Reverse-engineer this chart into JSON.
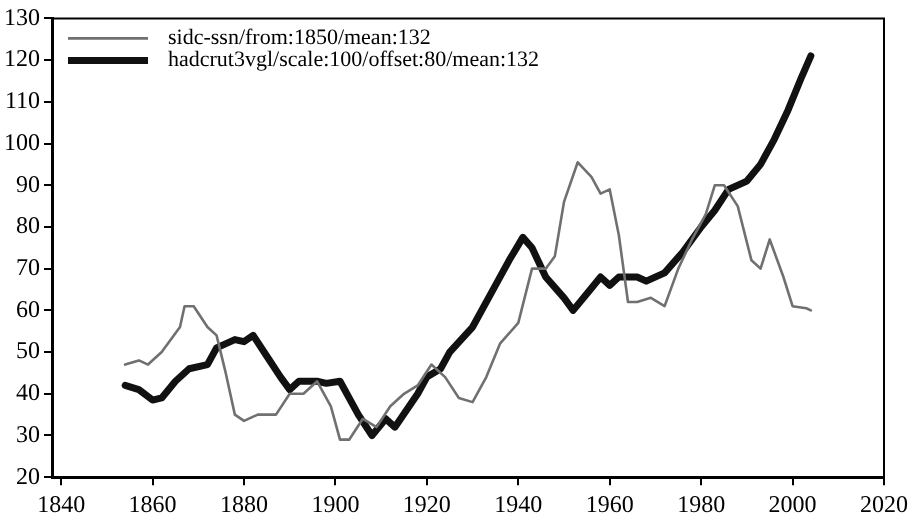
{
  "chart_data": {
    "type": "line",
    "xlim": [
      1838,
      2020
    ],
    "ylim": [
      20,
      130
    ],
    "xticks": [
      1840,
      1860,
      1880,
      1900,
      1920,
      1940,
      1960,
      1980,
      2000,
      2020
    ],
    "yticks": [
      20,
      30,
      40,
      50,
      60,
      70,
      80,
      90,
      100,
      110,
      120,
      130
    ],
    "grid": false,
    "legend": "top left",
    "marker": "none",
    "line_style": "solid",
    "series": [
      {
        "name": "sidc-ssn/from:1850/mean:132",
        "color": "#707070",
        "x": [
          1854,
          1857,
          1859,
          1862,
          1866,
          1867,
          1869,
          1872,
          1874,
          1876,
          1878,
          1880,
          1883,
          1887,
          1890,
          1893,
          1896,
          1899,
          1901,
          1903,
          1906,
          1909,
          1912,
          1915,
          1918,
          1921,
          1924,
          1927,
          1930,
          1933,
          1936,
          1940,
          1943,
          1946,
          1948,
          1950,
          1953,
          1956,
          1958,
          1960,
          1962,
          1964,
          1966,
          1969,
          1972,
          1975,
          1978,
          1981,
          1983,
          1985,
          1988,
          1991,
          1993,
          1995,
          1998,
          2000,
          2003,
          2004
        ],
        "values": [
          47,
          48,
          47,
          50,
          56,
          61,
          61,
          56,
          54,
          45,
          35,
          33.5,
          35,
          35,
          40,
          40,
          43,
          37,
          29,
          29,
          34,
          32,
          37,
          40,
          42,
          47,
          44,
          39,
          38,
          44,
          52,
          57,
          70,
          70,
          73,
          86,
          95.5,
          92,
          88,
          89,
          78,
          62,
          62,
          63,
          61,
          70,
          77,
          83,
          90,
          90,
          85,
          72,
          70,
          77,
          68,
          61,
          60.5,
          60
        ]
      },
      {
        "name": "hadcrut3vgl/scale:100/offset:80/mean:132",
        "color": "#111111",
        "x": [
          1854,
          1857,
          1860,
          1862,
          1865,
          1868,
          1872,
          1874,
          1878,
          1880,
          1882,
          1885,
          1888,
          1890,
          1892,
          1896,
          1898,
          1901,
          1905,
          1908,
          1911,
          1913,
          1918,
          1920,
          1923,
          1925,
          1930,
          1935,
          1938,
          1941,
          1943,
          1946,
          1950,
          1952,
          1955,
          1958,
          1960,
          1962,
          1966,
          1968,
          1972,
          1976,
          1980,
          1983,
          1986,
          1990,
          1993,
          1996,
          1999,
          2002,
          2004
        ],
        "values": [
          42,
          41,
          38.5,
          39,
          43,
          46,
          47,
          51,
          53,
          52.5,
          54,
          49,
          44,
          41,
          43,
          43,
          42.5,
          43,
          35,
          30,
          34,
          32,
          40,
          44,
          46,
          50,
          56,
          66,
          72,
          77.5,
          75,
          68,
          63,
          60,
          64,
          68,
          66,
          68,
          68,
          67,
          69,
          74,
          80,
          84,
          89,
          91,
          95,
          101,
          108,
          116,
          121
        ]
      }
    ]
  }
}
